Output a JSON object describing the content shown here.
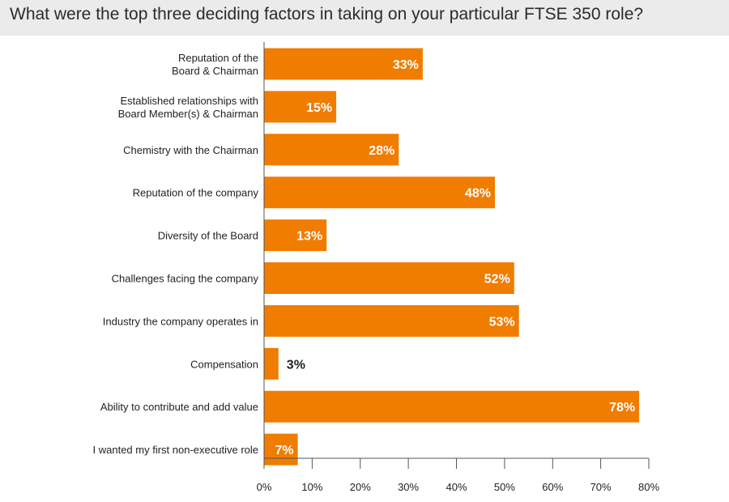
{
  "chart_data": {
    "type": "bar",
    "orientation": "horizontal",
    "title": "What were the top three deciding factors in taking on your particular FTSE 350 role?",
    "categories": [
      [
        "Reputation of the",
        "Board & Chairman"
      ],
      [
        "Established relationships with",
        "Board Member(s) & Chairman"
      ],
      [
        "Chemistry with the Chairman"
      ],
      [
        "Reputation of the company"
      ],
      [
        "Diversity of the Board"
      ],
      [
        "Challenges facing the company"
      ],
      [
        "Industry the company operates in"
      ],
      [
        "Compensation"
      ],
      [
        "Ability to contribute and add value"
      ],
      [
        "I wanted my first non-executive role"
      ]
    ],
    "values": [
      33,
      15,
      28,
      48,
      13,
      52,
      53,
      3,
      78,
      7
    ],
    "value_labels": [
      "33%",
      "15%",
      "28%",
      "48%",
      "13%",
      "52%",
      "53%",
      "3%",
      "78%",
      "7%"
    ],
    "xlim": [
      0,
      80
    ],
    "xticks": [
      0,
      10,
      20,
      30,
      40,
      50,
      60,
      70,
      80
    ],
    "xtick_labels": [
      "0%",
      "10%",
      "20%",
      "30%",
      "40%",
      "50%",
      "60%",
      "70%",
      "80%"
    ],
    "xlabel": "",
    "ylabel": "",
    "grid": false,
    "legend": "none",
    "bar_color": "#f07c00"
  }
}
